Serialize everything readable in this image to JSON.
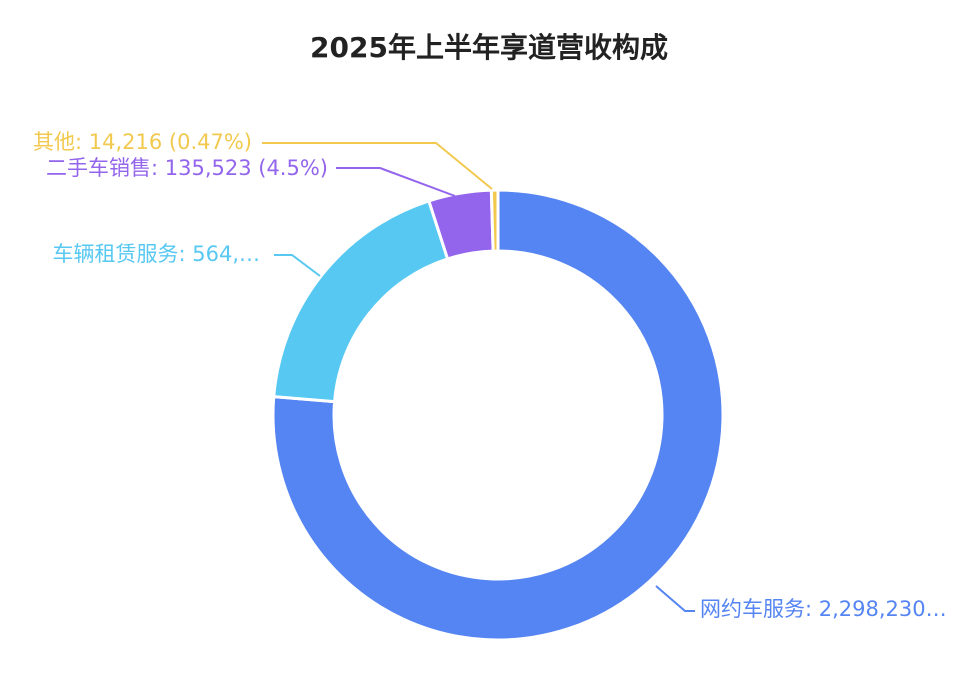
{
  "chart_data": {
    "type": "pie",
    "title": "2025年上半年享道营收构成",
    "slices": [
      {
        "name": "网约车服务",
        "value": 2298230,
        "label": "网约车服务: 2,298,230…",
        "color": "#5585f2"
      },
      {
        "name": "车辆租赁服务",
        "value": 564000,
        "label": "车辆租赁服务: 564,…",
        "color": "#57c8f2"
      },
      {
        "name": "二手车销售",
        "value": 135523,
        "label": "二手车销售: 135,523 (4.5%)",
        "color": "#9364ec"
      },
      {
        "name": "其他",
        "value": 14216,
        "label": "其他: 14,216 (0.47%)",
        "color": "#f2c94f"
      }
    ],
    "legend": "none"
  }
}
